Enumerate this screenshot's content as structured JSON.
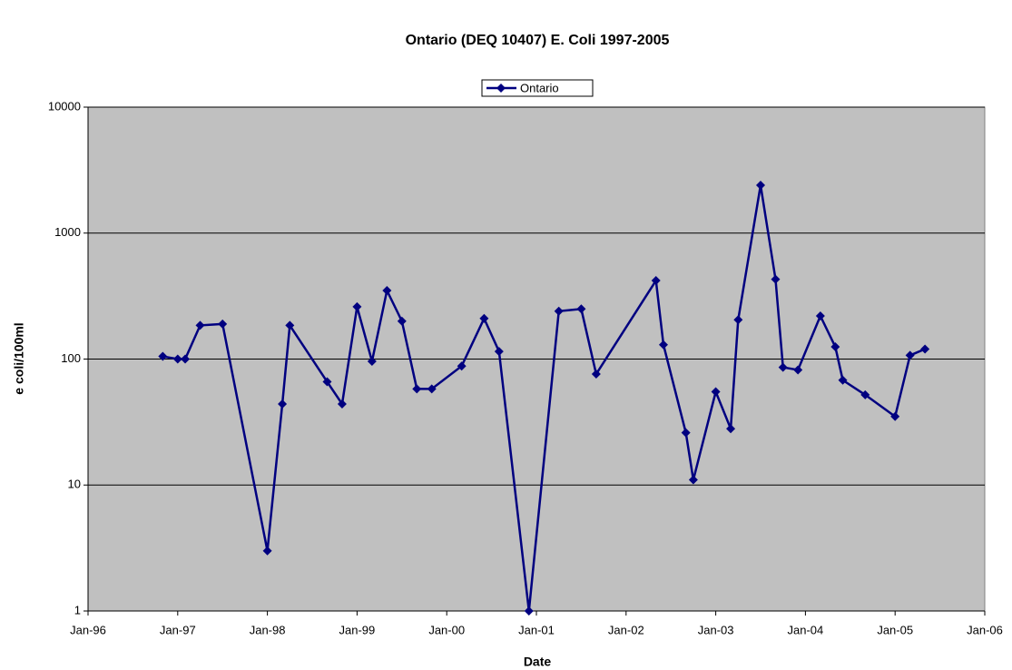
{
  "chart_data": {
    "type": "line",
    "title": "Ontario (DEQ 10407) E. Coli 1997-2005",
    "x_label": "Date",
    "y_label": "e coli/100ml",
    "log_y": true,
    "grid": true,
    "legend": "top",
    "x": [
      "1996-11",
      "1997-01",
      "1997-02",
      "1997-04",
      "1997-07",
      "1998-01",
      "1998-03",
      "1998-04",
      "1998-09",
      "1998-11",
      "1999-01",
      "1999-03",
      "1999-05",
      "1999-07",
      "1999-09",
      "1999-11",
      "2000-03",
      "2000-06",
      "2000-08",
      "2000-12",
      "2001-04",
      "2001-07",
      "2001-09",
      "2002-05",
      "2002-06",
      "2002-09",
      "2002-10",
      "2003-01",
      "2003-03",
      "2003-04",
      "2003-07",
      "2003-09",
      "2003-10",
      "2003-12",
      "2004-03",
      "2004-05",
      "2004-06",
      "2004-09",
      "2005-01",
      "2005-03",
      "2005-05"
    ],
    "series": [
      {
        "name": "Ontario",
        "color": "#000080",
        "values": [
          105,
          100,
          100,
          185,
          190,
          3,
          44,
          185,
          66,
          44,
          260,
          96,
          350,
          200,
          58,
          58,
          88,
          210,
          115,
          1,
          240,
          250,
          76,
          420,
          130,
          26,
          11,
          55,
          28,
          205,
          2400,
          430,
          86,
          82,
          220,
          125,
          68,
          52,
          35,
          107,
          120
        ]
      }
    ],
    "xlim": [
      "1996-01",
      "2006-01"
    ],
    "xticks": [
      {
        "value": "1996-01",
        "label": "Jan-96"
      },
      {
        "value": "1997-01",
        "label": "Jan-97"
      },
      {
        "value": "1998-01",
        "label": "Jan-98"
      },
      {
        "value": "1999-01",
        "label": "Jan-99"
      },
      {
        "value": "2000-01",
        "label": "Jan-00"
      },
      {
        "value": "2001-01",
        "label": "Jan-01"
      },
      {
        "value": "2002-01",
        "label": "Jan-02"
      },
      {
        "value": "2003-01",
        "label": "Jan-03"
      },
      {
        "value": "2004-01",
        "label": "Jan-04"
      },
      {
        "value": "2005-01",
        "label": "Jan-05"
      },
      {
        "value": "2006-01",
        "label": "Jan-06"
      }
    ],
    "ylim": [
      1,
      10000
    ],
    "yticks": [
      1,
      10,
      100,
      1000,
      10000
    ]
  }
}
